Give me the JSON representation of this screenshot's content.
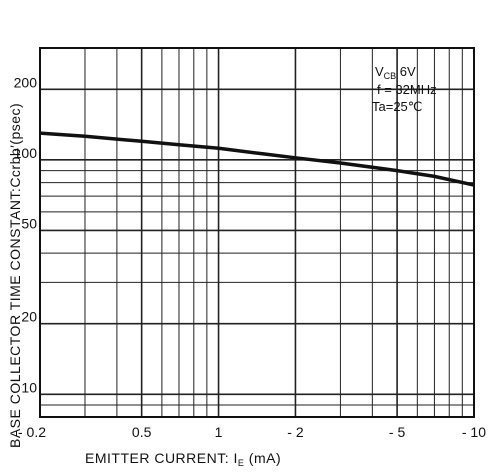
{
  "chart_data": {
    "type": "line",
    "title": "",
    "xlabel": "EMITTER CURRENT: I",
    "xlabel_sub": "E",
    "xlabel_unit": "(mA)",
    "ylabel": "BASE COLLECTOR TIME CONSTANT:Ccrbb′(psec)",
    "x_scale": "log",
    "y_scale": "log",
    "xlim": [
      0.2,
      10
    ],
    "ylim": [
      8,
      300
    ],
    "x_ticks": [
      {
        "value": 0.2,
        "label": "- 0.2"
      },
      {
        "value": 0.5,
        "label": "0.5"
      },
      {
        "value": 1,
        "label": "1"
      },
      {
        "value": 2,
        "label": "- 2"
      },
      {
        "value": 5,
        "label": "- 5"
      },
      {
        "value": 10,
        "label": "- 10"
      }
    ],
    "y_ticks": [
      {
        "value": 10,
        "label": "10"
      },
      {
        "value": 20,
        "label": "20"
      },
      {
        "value": 50,
        "label": "50"
      },
      {
        "value": 100,
        "label": "100"
      },
      {
        "value": 200,
        "label": "200"
      }
    ],
    "grid": true,
    "annotations": [
      {
        "text": "V",
        "sub": "CB",
        "rest": "  6V"
      },
      {
        "text": "f = 32MHz"
      },
      {
        "text": "Ta=25℃"
      }
    ],
    "series": [
      {
        "x": [
          0.2,
          0.3,
          0.5,
          0.7,
          1,
          1.5,
          2,
          3,
          5,
          7,
          10
        ],
        "y": [
          130,
          126,
          120,
          116,
          112,
          106,
          102,
          97,
          90,
          85,
          78
        ]
      }
    ],
    "colors": {
      "line": "#111111",
      "grid": "#222222",
      "background": "#ffffff"
    }
  }
}
